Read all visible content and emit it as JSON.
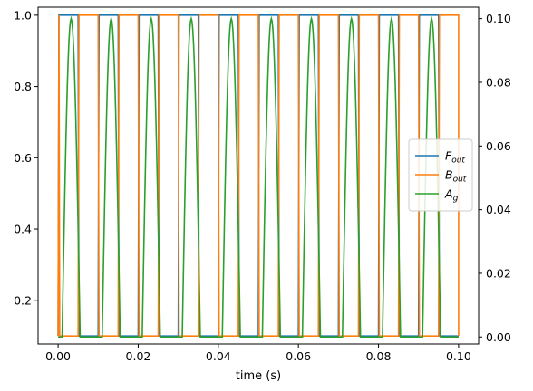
{
  "chart_data": {
    "type": "line",
    "xlabel": "time (s)",
    "x_ticks": [
      "0.00",
      "0.02",
      "0.04",
      "0.06",
      "0.08",
      "0.10"
    ],
    "left_ticks": [
      "0.2",
      "0.4",
      "0.6",
      "0.8",
      "1.0"
    ],
    "right_ticks": [
      "0.00",
      "0.02",
      "0.04",
      "0.06",
      "0.08",
      "0.10"
    ],
    "xlim": [
      -0.005,
      0.105
    ],
    "ylim_left": [
      0.0775,
      1.0225
    ],
    "ylim_right": [
      -0.0022,
      0.1036
    ],
    "period": 0.01,
    "ramp": 0.0002,
    "legend_position": "center-right",
    "series": [
      {
        "name_main": "F",
        "name_sub": "out",
        "color": "#1f77b4",
        "axis": "left",
        "low": 0.1,
        "high": 1.0,
        "x_start": 0.0,
        "x_end": 0.1,
        "high_intervals": [
          [
            0.0,
            0.005
          ],
          [
            0.01,
            0.015
          ],
          [
            0.02,
            0.025
          ],
          [
            0.03,
            0.035
          ],
          [
            0.04,
            0.045
          ],
          [
            0.05,
            0.055
          ],
          [
            0.06,
            0.065
          ],
          [
            0.07,
            0.075
          ],
          [
            0.08,
            0.085
          ],
          [
            0.09,
            0.095
          ]
        ]
      },
      {
        "name_main": "B",
        "name_sub": "out",
        "color": "#ff7f0e",
        "axis": "left",
        "low": 0.1,
        "high": 1.0,
        "x_start": 0.0,
        "x_end": 0.1,
        "high_intervals": [
          [
            0.0,
            0.0002
          ],
          [
            0.005,
            0.01
          ],
          [
            0.015,
            0.02
          ],
          [
            0.025,
            0.03
          ],
          [
            0.035,
            0.04
          ],
          [
            0.045,
            0.05
          ],
          [
            0.055,
            0.06
          ],
          [
            0.065,
            0.07
          ],
          [
            0.075,
            0.08
          ],
          [
            0.085,
            0.09
          ],
          [
            0.095,
            0.1
          ]
        ]
      },
      {
        "name_main": "A",
        "name_sub": "g",
        "color": "#2ca02c",
        "axis": "right",
        "shape": "half-sine",
        "low": 0.0,
        "peak": 0.1,
        "x_start": 0.0,
        "x_end": 0.1,
        "pulse_intervals": [
          [
            0.001,
            0.0055
          ],
          [
            0.011,
            0.0155
          ],
          [
            0.021,
            0.0255
          ],
          [
            0.031,
            0.0355
          ],
          [
            0.041,
            0.0455
          ],
          [
            0.051,
            0.0555
          ],
          [
            0.061,
            0.0655
          ],
          [
            0.071,
            0.0755
          ],
          [
            0.081,
            0.0855
          ],
          [
            0.091,
            0.0955
          ]
        ]
      }
    ]
  }
}
